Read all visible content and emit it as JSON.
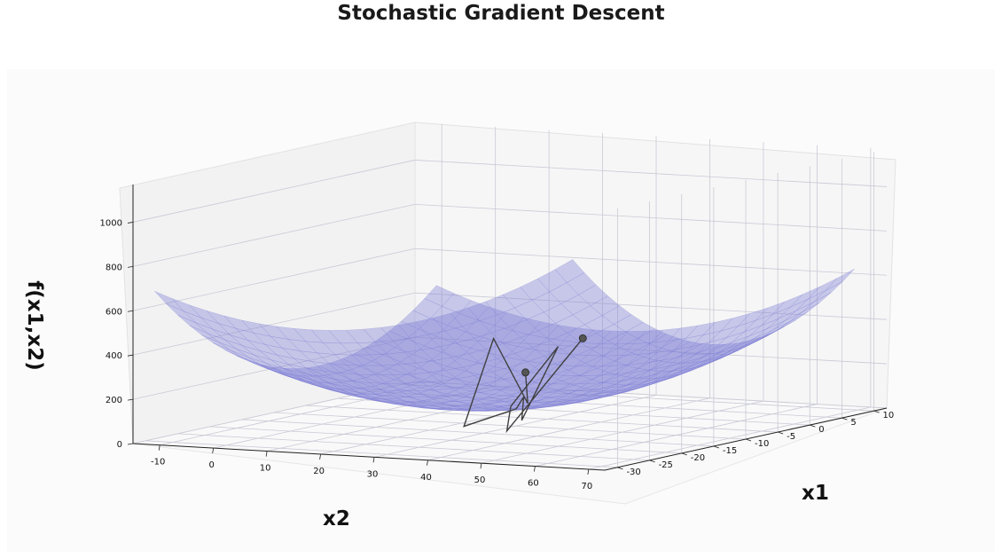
{
  "chart_data": {
    "type": "surface3d",
    "title": "Stochastic Gradient Descent",
    "xlabel": "x1",
    "ylabel": "x2",
    "zlabel": "f(x1,x2)",
    "x1_ticks": [
      "-30",
      "-25",
      "-20",
      "-15",
      "-10",
      "-5",
      "0",
      "5",
      "10"
    ],
    "x2_ticks": [
      "-10",
      "0",
      "10",
      "20",
      "30",
      "40",
      "50",
      "60",
      "70"
    ],
    "z_ticks": [
      "0",
      "200",
      "400",
      "600",
      "800",
      "1000"
    ],
    "x1_range": [
      -32,
      12
    ],
    "x2_range": [
      -15,
      73
    ],
    "z_range": [
      0,
      1170
    ],
    "surface_color": "#7b7bd4",
    "path_color": "#404040",
    "start_point": {
      "x1": -12,
      "x2": 45,
      "z": 430
    },
    "end_point": {
      "x1": 10,
      "x2": 8,
      "z": 85
    },
    "path": [
      {
        "x1": -12,
        "x2": 45,
        "z": 430
      },
      {
        "x1": -18,
        "x2": 38,
        "z": 40
      },
      {
        "x1": -4,
        "x2": 22,
        "z": 40
      },
      {
        "x1": -10,
        "x2": 38,
        "z": 370
      },
      {
        "x1": -14,
        "x2": 36,
        "z": 60
      },
      {
        "x1": -7,
        "x2": 28,
        "z": 110
      },
      {
        "x1": -4,
        "x2": 23,
        "z": 30
      },
      {
        "x1": -18,
        "x2": 30,
        "z": 50
      },
      {
        "x1": 0,
        "x2": 14,
        "z": 310
      },
      {
        "x1": 2,
        "x2": 18,
        "z": 10
      },
      {
        "x1": 10,
        "x2": 8,
        "z": 85
      }
    ],
    "grid": true
  }
}
